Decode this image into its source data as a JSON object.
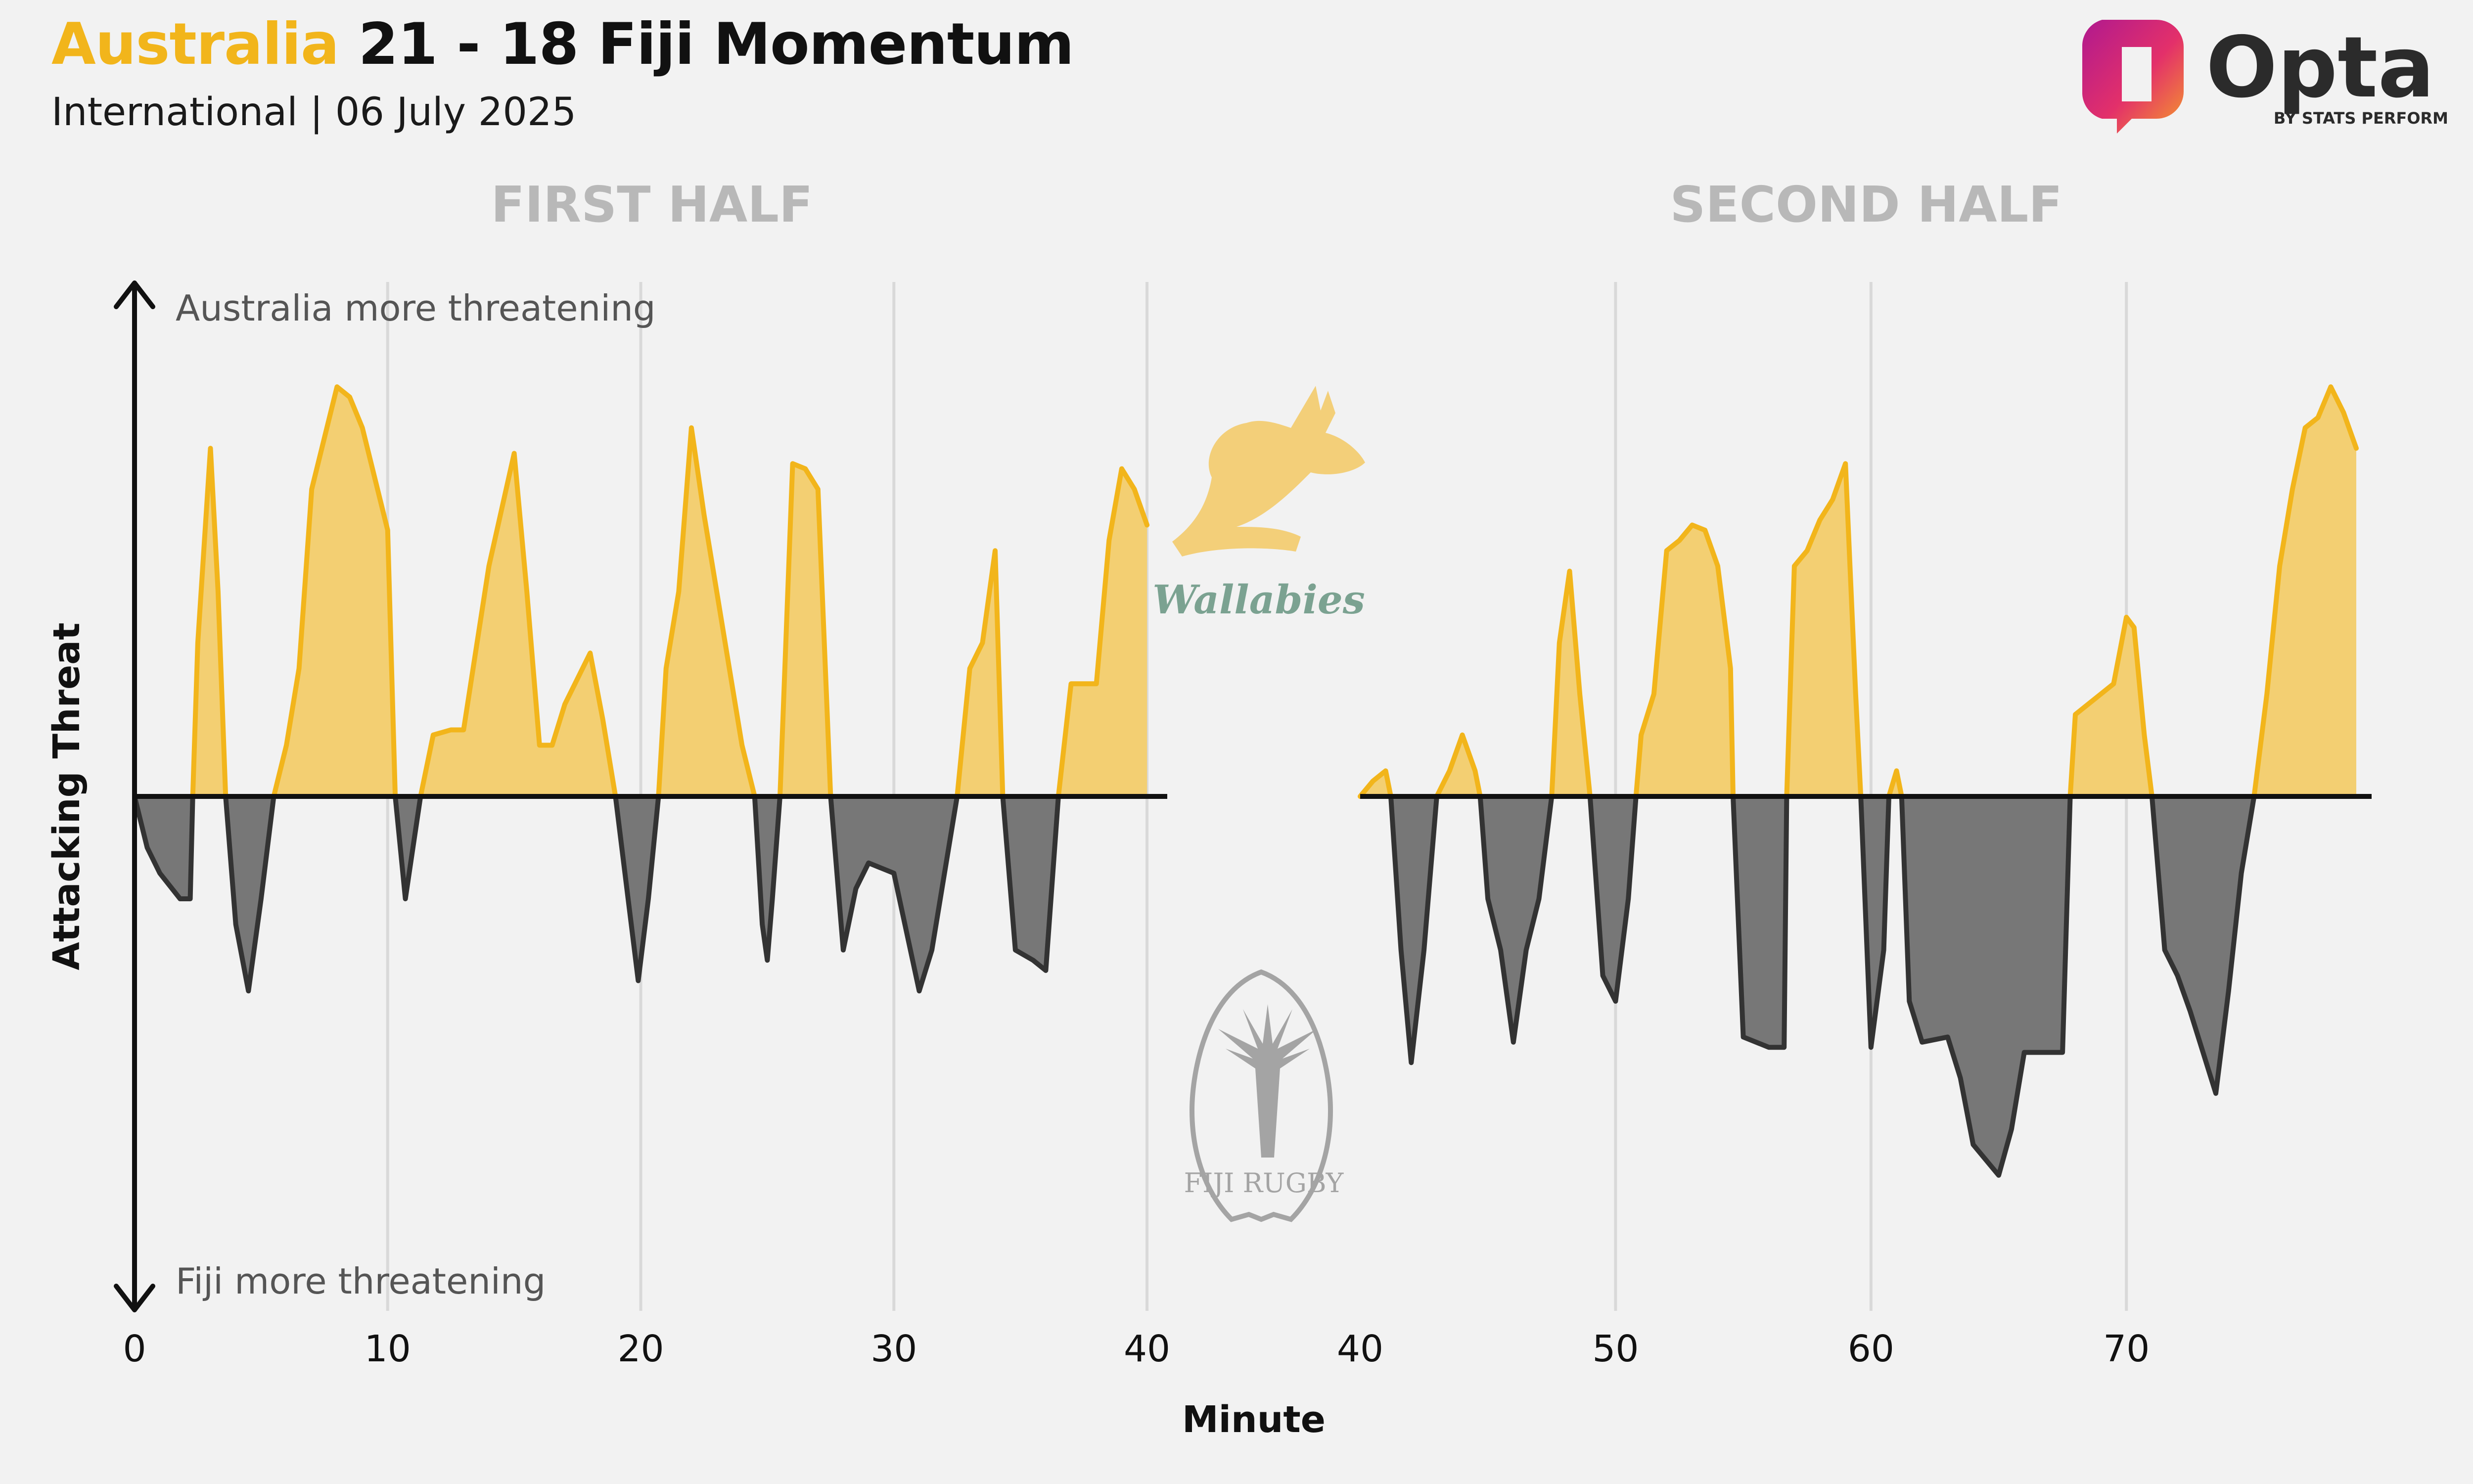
{
  "header": {
    "home_team": "Australia",
    "score_rest": " 21 - 18 Fiji Momentum",
    "subtitle": "International | 06 July 2025"
  },
  "brand": {
    "name": "Opta",
    "tagline": "BY STATS PERFORM"
  },
  "logos": {
    "home": "Wallabies",
    "away": "FIJI RUGBY"
  },
  "colors": {
    "home": "#f2b51b",
    "home_fill": "#f3cf72",
    "away": "#333333",
    "away_fill": "#777777"
  },
  "chart_data": {
    "type": "area",
    "xlabel": "Minute",
    "ylabel": "Attacking Threat",
    "annotations": {
      "top": "Australia more threatening",
      "bottom": "Fiji more threatening"
    },
    "y_range": [
      -1,
      1
    ],
    "grid": "vertical",
    "halves": [
      {
        "title": "FIRST HALF",
        "xlim": [
          0,
          40.8
        ],
        "ticks": [
          0,
          10,
          20,
          30,
          40
        ],
        "points": [
          [
            0,
            0
          ],
          [
            0.5,
            -0.1
          ],
          [
            1,
            -0.15
          ],
          [
            1.8,
            -0.2
          ],
          [
            2.2,
            -0.2
          ],
          [
            2.3,
            0
          ],
          [
            2.5,
            0.3
          ],
          [
            3,
            0.68
          ],
          [
            3.3,
            0.4
          ],
          [
            3.6,
            0
          ],
          [
            4,
            -0.25
          ],
          [
            4.5,
            -0.38
          ],
          [
            5,
            -0.2
          ],
          [
            5.5,
            0
          ],
          [
            6,
            0.1
          ],
          [
            6.5,
            0.25
          ],
          [
            7,
            0.6
          ],
          [
            7.5,
            0.7
          ],
          [
            8,
            0.8
          ],
          [
            8.5,
            0.78
          ],
          [
            9,
            0.72
          ],
          [
            9.5,
            0.62
          ],
          [
            10,
            0.52
          ],
          [
            10.3,
            0
          ],
          [
            10.7,
            -0.2
          ],
          [
            11,
            -0.1
          ],
          [
            11.3,
            0
          ],
          [
            11.8,
            0.12
          ],
          [
            12.5,
            0.13
          ],
          [
            13,
            0.13
          ],
          [
            14,
            0.45
          ],
          [
            15,
            0.67
          ],
          [
            15.5,
            0.4
          ],
          [
            16,
            0.1
          ],
          [
            16.5,
            0.1
          ],
          [
            17,
            0.18
          ],
          [
            18,
            0.28
          ],
          [
            18.5,
            0.15
          ],
          [
            19,
            0
          ],
          [
            19.5,
            -0.2
          ],
          [
            19.9,
            -0.36
          ],
          [
            20.3,
            -0.2
          ],
          [
            20.7,
            0
          ],
          [
            21,
            0.25
          ],
          [
            21.5,
            0.4
          ],
          [
            22,
            0.72
          ],
          [
            22.5,
            0.55
          ],
          [
            23,
            0.4
          ],
          [
            23.5,
            0.25
          ],
          [
            24,
            0.1
          ],
          [
            24.5,
            0
          ],
          [
            24.8,
            -0.25
          ],
          [
            25,
            -0.32
          ],
          [
            25.2,
            -0.2
          ],
          [
            25.5,
            0
          ],
          [
            26,
            0.65
          ],
          [
            26.5,
            0.64
          ],
          [
            27,
            0.6
          ],
          [
            27.5,
            0
          ],
          [
            28,
            -0.3
          ],
          [
            28.5,
            -0.18
          ],
          [
            29,
            -0.13
          ],
          [
            30,
            -0.15
          ],
          [
            31,
            -0.38
          ],
          [
            31.5,
            -0.3
          ],
          [
            32,
            -0.15
          ],
          [
            32.5,
            0
          ],
          [
            33,
            0.25
          ],
          [
            33.5,
            0.3
          ],
          [
            34,
            0.48
          ],
          [
            34.3,
            0
          ],
          [
            34.8,
            -0.3
          ],
          [
            35.5,
            -0.32
          ],
          [
            36,
            -0.34
          ],
          [
            36.5,
            0
          ],
          [
            37,
            0.22
          ],
          [
            38,
            0.22
          ],
          [
            38.5,
            0.5
          ],
          [
            39,
            0.64
          ],
          [
            39.5,
            0.6
          ],
          [
            40,
            0.53
          ]
        ]
      },
      {
        "title": "SECOND HALF",
        "xlim": [
          40,
          79.6
        ],
        "ticks": [
          40,
          50,
          60,
          70
        ],
        "points": [
          [
            40,
            0
          ],
          [
            40.5,
            0.03
          ],
          [
            41,
            0.05
          ],
          [
            41.2,
            0
          ],
          [
            41.6,
            -0.3
          ],
          [
            42,
            -0.52
          ],
          [
            42.5,
            -0.3
          ],
          [
            43,
            0
          ],
          [
            43.5,
            0.05
          ],
          [
            44,
            0.12
          ],
          [
            44.5,
            0.05
          ],
          [
            44.7,
            0
          ],
          [
            45,
            -0.2
          ],
          [
            45.5,
            -0.3
          ],
          [
            46,
            -0.48
          ],
          [
            46.5,
            -0.3
          ],
          [
            47,
            -0.2
          ],
          [
            47.5,
            0
          ],
          [
            47.8,
            0.3
          ],
          [
            48.2,
            0.44
          ],
          [
            48.6,
            0.2
          ],
          [
            49,
            0
          ],
          [
            49.5,
            -0.35
          ],
          [
            50,
            -0.4
          ],
          [
            50.5,
            -0.2
          ],
          [
            50.8,
            0
          ],
          [
            51,
            0.12
          ],
          [
            51.5,
            0.2
          ],
          [
            52,
            0.48
          ],
          [
            52.5,
            0.5
          ],
          [
            53,
            0.53
          ],
          [
            53.5,
            0.52
          ],
          [
            54,
            0.45
          ],
          [
            54.5,
            0.25
          ],
          [
            54.6,
            0
          ],
          [
            55,
            -0.47
          ],
          [
            56,
            -0.49
          ],
          [
            56.6,
            -0.49
          ],
          [
            56.7,
            0
          ],
          [
            57,
            0.45
          ],
          [
            57.5,
            0.48
          ],
          [
            58,
            0.54
          ],
          [
            58.5,
            0.58
          ],
          [
            59,
            0.65
          ],
          [
            59.4,
            0.2
          ],
          [
            59.6,
            0
          ],
          [
            60,
            -0.49
          ],
          [
            60.5,
            -0.3
          ],
          [
            60.7,
            0
          ],
          [
            61,
            0.05
          ],
          [
            61.2,
            0
          ],
          [
            61.5,
            -0.4
          ],
          [
            62,
            -0.48
          ],
          [
            63,
            -0.47
          ],
          [
            63.5,
            -0.55
          ],
          [
            64,
            -0.68
          ],
          [
            65,
            -0.74
          ],
          [
            65.5,
            -0.65
          ],
          [
            66,
            -0.5
          ],
          [
            67,
            -0.5
          ],
          [
            67.5,
            -0.5
          ],
          [
            67.8,
            0
          ],
          [
            68,
            0.16
          ],
          [
            68.5,
            0.18
          ],
          [
            69,
            0.2
          ],
          [
            69.5,
            0.22
          ],
          [
            70,
            0.35
          ],
          [
            70.3,
            0.33
          ],
          [
            70.7,
            0.12
          ],
          [
            71,
            0
          ],
          [
            71.5,
            -0.3
          ],
          [
            72,
            -0.35
          ],
          [
            72.5,
            -0.42
          ],
          [
            73,
            -0.5
          ],
          [
            73.5,
            -0.58
          ],
          [
            74,
            -0.38
          ],
          [
            74.5,
            -0.15
          ],
          [
            75,
            0
          ],
          [
            75.5,
            0.2
          ],
          [
            76,
            0.45
          ],
          [
            76.5,
            0.6
          ],
          [
            77,
            0.72
          ],
          [
            77.5,
            0.74
          ],
          [
            78,
            0.8
          ],
          [
            78.5,
            0.75
          ],
          [
            79,
            0.68
          ]
        ]
      }
    ]
  }
}
